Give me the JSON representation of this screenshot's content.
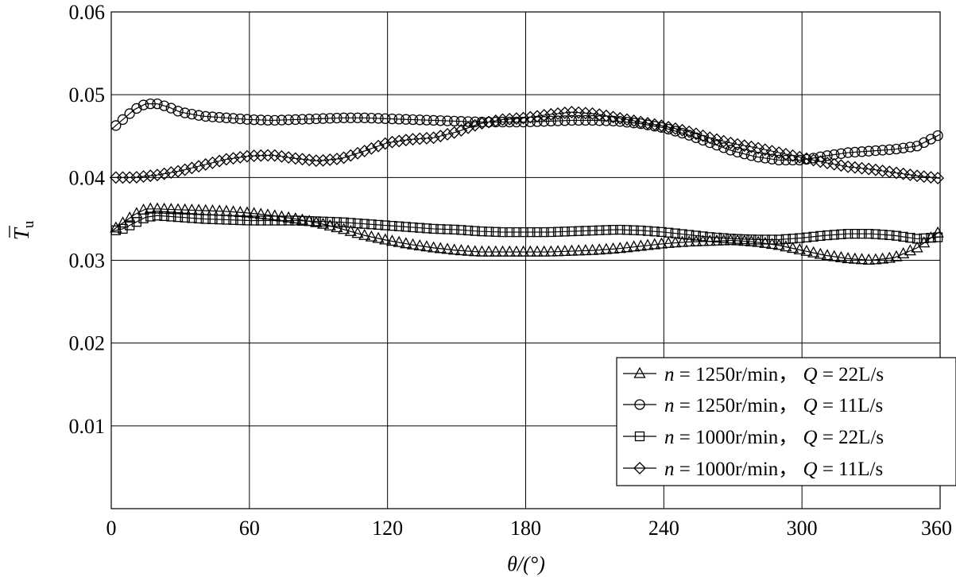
{
  "chart_data": {
    "type": "line",
    "title": "",
    "xlabel": "θ/(°)",
    "ylabel": "T̄u",
    "ylabel_main": "T",
    "ylabel_sub": "u",
    "xlim": [
      0,
      360
    ],
    "ylim": [
      0,
      0.06
    ],
    "xticks": [
      0,
      60,
      120,
      180,
      240,
      300,
      360
    ],
    "yticks": [
      0.01,
      0.02,
      0.03,
      0.04,
      0.05,
      0.06
    ],
    "xtick_labels": [
      "0",
      "60",
      "120",
      "180",
      "240",
      "300",
      "360"
    ],
    "ytick_labels": [
      "0.01",
      "0.02",
      "0.03",
      "0.04",
      "0.05",
      "0.06"
    ],
    "grid": true,
    "legend_position": "bottom-right",
    "series": [
      {
        "name": "n = 1250r/min，Q = 22L/s",
        "legend": {
          "n_label": "n",
          "n_value": "= 1250r/min，",
          "q_label": "Q",
          "q_value": "= 22L/s"
        },
        "marker": "triangle",
        "x": [
          0,
          5,
          10,
          15,
          20,
          30,
          40,
          50,
          60,
          70,
          80,
          90,
          100,
          110,
          120,
          130,
          140,
          150,
          160,
          170,
          180,
          190,
          200,
          210,
          220,
          230,
          240,
          250,
          260,
          270,
          280,
          290,
          300,
          310,
          320,
          330,
          340,
          350,
          360
        ],
        "y": [
          0.0335,
          0.0345,
          0.0355,
          0.0362,
          0.0362,
          0.0361,
          0.036,
          0.0359,
          0.0357,
          0.0354,
          0.035,
          0.0345,
          0.0338,
          0.033,
          0.0324,
          0.0319,
          0.0315,
          0.0312,
          0.031,
          0.031,
          0.031,
          0.031,
          0.0311,
          0.0312,
          0.0314,
          0.0317,
          0.032,
          0.0322,
          0.0323,
          0.0324,
          0.0322,
          0.0318,
          0.0312,
          0.0306,
          0.0302,
          0.03,
          0.0303,
          0.0315,
          0.0335
        ]
      },
      {
        "name": "n = 1250r/min，Q = 11L/s",
        "legend": {
          "n_label": "n",
          "n_value": "= 1250r/min，",
          "q_label": "Q",
          "q_value": "= 11L/s"
        },
        "marker": "circle",
        "x": [
          0,
          5,
          10,
          15,
          20,
          25,
          30,
          40,
          50,
          60,
          70,
          80,
          90,
          100,
          110,
          120,
          130,
          140,
          150,
          160,
          170,
          180,
          190,
          200,
          210,
          220,
          230,
          240,
          250,
          260,
          270,
          280,
          290,
          300,
          310,
          320,
          330,
          340,
          350,
          360
        ],
        "y": [
          0.0458,
          0.047,
          0.0482,
          0.0489,
          0.0489,
          0.0485,
          0.0479,
          0.0474,
          0.0472,
          0.047,
          0.0469,
          0.047,
          0.0471,
          0.0472,
          0.0472,
          0.0471,
          0.047,
          0.0469,
          0.0468,
          0.0467,
          0.0467,
          0.0467,
          0.0468,
          0.0469,
          0.0469,
          0.0468,
          0.0465,
          0.046,
          0.0452,
          0.0442,
          0.0432,
          0.0425,
          0.0421,
          0.0421,
          0.0426,
          0.043,
          0.0432,
          0.0434,
          0.0438,
          0.0452
        ]
      },
      {
        "name": "n = 1000r/min，Q = 22L/s",
        "legend": {
          "n_label": "n",
          "n_value": "= 1000r/min，",
          "q_label": "Q",
          "q_value": "= 22L/s"
        },
        "marker": "square",
        "x": [
          0,
          5,
          10,
          15,
          20,
          30,
          40,
          50,
          60,
          70,
          80,
          90,
          100,
          110,
          120,
          130,
          140,
          150,
          160,
          170,
          180,
          190,
          200,
          210,
          220,
          230,
          240,
          250,
          260,
          270,
          280,
          290,
          300,
          310,
          320,
          330,
          340,
          350,
          360
        ],
        "y": [
          0.0335,
          0.0338,
          0.0345,
          0.0352,
          0.0354,
          0.0352,
          0.035,
          0.0349,
          0.0348,
          0.0348,
          0.0348,
          0.0347,
          0.0346,
          0.0344,
          0.0342,
          0.034,
          0.0338,
          0.0337,
          0.0335,
          0.0334,
          0.0334,
          0.0334,
          0.0335,
          0.0336,
          0.0337,
          0.0336,
          0.0334,
          0.0331,
          0.0328,
          0.0326,
          0.0325,
          0.0325,
          0.0327,
          0.033,
          0.0332,
          0.0332,
          0.033,
          0.0326,
          0.0328
        ]
      },
      {
        "name": "n = 1000r/min，Q = 11L/s",
        "legend": {
          "n_label": "n",
          "n_value": "= 1000r/min，",
          "q_label": "Q",
          "q_value": "= 11L/s"
        },
        "marker": "diamond",
        "x": [
          0,
          10,
          20,
          30,
          40,
          50,
          60,
          70,
          80,
          90,
          100,
          110,
          120,
          130,
          140,
          150,
          160,
          170,
          180,
          190,
          200,
          210,
          220,
          230,
          240,
          250,
          260,
          270,
          280,
          290,
          300,
          310,
          320,
          330,
          340,
          350,
          360
        ],
        "y": [
          0.04,
          0.04,
          0.0403,
          0.0408,
          0.0415,
          0.0422,
          0.0426,
          0.0427,
          0.0423,
          0.042,
          0.0423,
          0.0432,
          0.0442,
          0.0446,
          0.0448,
          0.0455,
          0.0465,
          0.047,
          0.0472,
          0.0476,
          0.0479,
          0.0477,
          0.0472,
          0.0467,
          0.0462,
          0.0456,
          0.0448,
          0.0441,
          0.0436,
          0.043,
          0.0424,
          0.0418,
          0.0413,
          0.041,
          0.0406,
          0.0402,
          0.0399
        ]
      }
    ]
  }
}
